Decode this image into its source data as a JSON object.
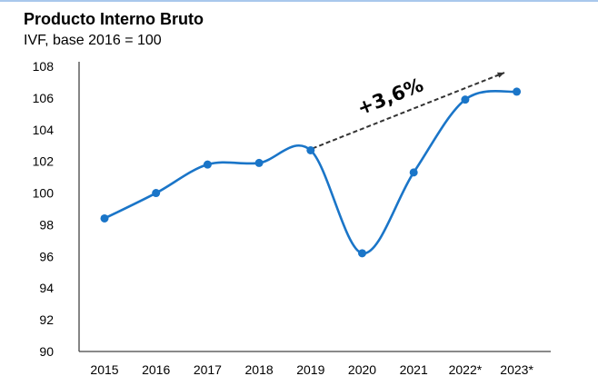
{
  "chart_data": {
    "type": "line",
    "title": "Producto Interno Bruto",
    "subtitle": "IVF, base 2016 = 100",
    "xlabel": "",
    "ylabel": "",
    "categories": [
      "2015",
      "2016",
      "2017",
      "2018",
      "2019",
      "2020",
      "2021",
      "2022*",
      "2023*"
    ],
    "series": [
      {
        "values": [
          98.4,
          100.0,
          101.8,
          101.9,
          102.7,
          96.2,
          101.3,
          105.9,
          106.4
        ]
      }
    ],
    "ylim": [
      90,
      108
    ],
    "yticks": [
      90,
      92,
      94,
      96,
      98,
      100,
      102,
      104,
      106,
      108
    ],
    "grid": false,
    "line_color": "#1a75c8",
    "annotation": {
      "text": "+3,6%",
      "from_category": "2019",
      "style": "dashed arrow"
    }
  }
}
